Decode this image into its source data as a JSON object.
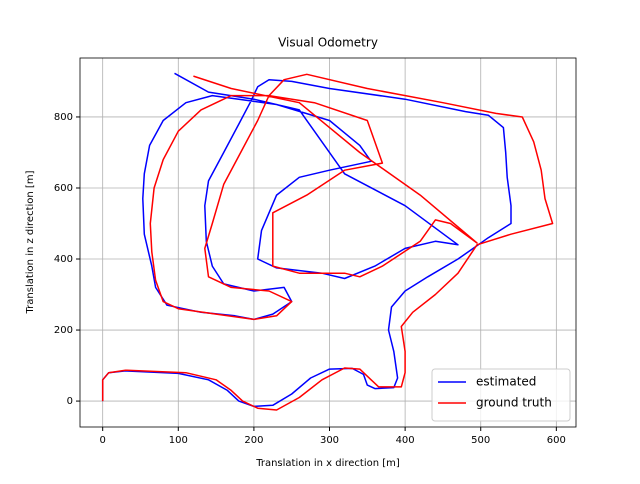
{
  "chart_data": {
    "type": "line",
    "title": "Visual Odometry",
    "xlabel": "Translation in x direction [m]",
    "ylabel": "Translation in z direction [m]",
    "xlim": [
      -30,
      626
    ],
    "ylim": [
      -73,
      966
    ],
    "xticks": [
      0,
      100,
      200,
      300,
      400,
      500,
      600
    ],
    "yticks": [
      0,
      200,
      400,
      600,
      800
    ],
    "grid": true,
    "legend": "lower right",
    "series": [
      {
        "name": "estimated",
        "color": "#0000ff",
        "x": [
          0,
          0,
          8,
          30,
          100,
          140,
          165,
          180,
          200,
          225,
          250,
          275,
          300,
          330,
          345,
          350,
          360,
          385,
          390,
          385,
          378,
          382,
          400,
          430,
          470,
          490,
          510,
          540,
          540,
          535,
          533,
          530,
          510,
          480,
          400,
          300,
          250,
          220,
          205,
          195,
          180,
          160,
          140,
          135,
          137,
          145,
          160,
          200,
          240,
          250,
          225,
          200,
          175,
          130,
          85,
          70,
          65,
          55,
          53,
          55,
          62,
          80,
          110,
          145,
          180,
          230,
          300,
          340,
          355,
          300,
          260,
          230,
          210,
          205,
          230,
          290,
          320,
          360,
          400,
          440,
          470,
          400,
          320,
          260,
          200,
          140,
          95
        ],
        "values": [
          0,
          60,
          80,
          85,
          78,
          60,
          30,
          0,
          -15,
          -12,
          20,
          65,
          90,
          92,
          75,
          45,
          35,
          38,
          65,
          140,
          200,
          265,
          310,
          350,
          400,
          430,
          460,
          500,
          550,
          630,
          700,
          770,
          805,
          815,
          850,
          880,
          900,
          905,
          885,
          840,
          780,
          700,
          620,
          550,
          450,
          380,
          330,
          310,
          320,
          280,
          245,
          230,
          240,
          250,
          270,
          320,
          380,
          470,
          570,
          640,
          720,
          790,
          840,
          860,
          850,
          835,
          790,
          720,
          675,
          650,
          630,
          580,
          480,
          400,
          375,
          360,
          345,
          380,
          430,
          450,
          440,
          550,
          640,
          820,
          850,
          870,
          923
        ]
      },
      {
        "name": "ground truth",
        "color": "#ff0000",
        "x": [
          0,
          0,
          8,
          30,
          110,
          150,
          170,
          185,
          205,
          230,
          260,
          290,
          320,
          340,
          355,
          365,
          395,
          400,
          400,
          395,
          410,
          440,
          470,
          495,
          540,
          595,
          585,
          580,
          570,
          555,
          520,
          450,
          350,
          270,
          240,
          220,
          205,
          185,
          160,
          145,
          135,
          140,
          170,
          220,
          250,
          230,
          200,
          150,
          100,
          80,
          70,
          65,
          63,
          68,
          80,
          100,
          130,
          170,
          220,
          280,
          350,
          370,
          320,
          270,
          225,
          225,
          260,
          320,
          340,
          370,
          420,
          440,
          460,
          495,
          420,
          340,
          260,
          170,
          120
        ],
        "values": [
          0,
          60,
          80,
          87,
          80,
          60,
          30,
          0,
          -20,
          -25,
          10,
          60,
          93,
          90,
          60,
          40,
          40,
          80,
          140,
          210,
          250,
          300,
          360,
          440,
          470,
          500,
          570,
          650,
          730,
          800,
          810,
          840,
          880,
          920,
          905,
          860,
          790,
          710,
          610,
          500,
          430,
          350,
          320,
          310,
          280,
          240,
          230,
          245,
          260,
          280,
          340,
          420,
          500,
          600,
          680,
          760,
          820,
          860,
          860,
          840,
          790,
          670,
          650,
          580,
          530,
          380,
          360,
          360,
          350,
          380,
          450,
          510,
          500,
          445,
          580,
          700,
          840,
          880,
          915
        ]
      }
    ]
  }
}
